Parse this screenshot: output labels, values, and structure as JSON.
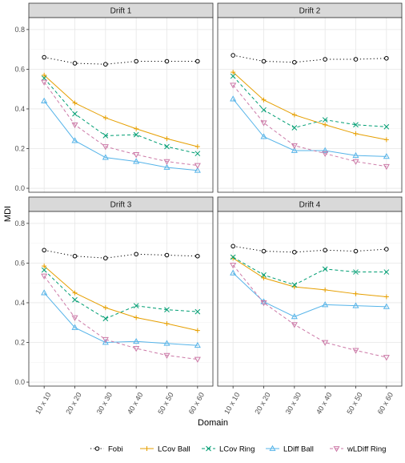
{
  "chart_data": {
    "type": "line",
    "xlabel": "Domain",
    "ylabel": "MDI",
    "categories": [
      "10 x 10",
      "20 x 20",
      "30 x 30",
      "40 x 40",
      "50 x 50",
      "60 x 60"
    ],
    "ylim": [
      -0.02,
      0.86
    ],
    "yticks": [
      0.0,
      0.2,
      0.4,
      0.6,
      0.8
    ],
    "ytick_labels": [
      "0.0",
      "0.2",
      "0.4",
      "0.6",
      "0.8"
    ],
    "grid": true,
    "legend_position": "bottom",
    "legend": [
      {
        "name": "Fobi",
        "color": "#000000",
        "dash": "dotted",
        "marker": "circle"
      },
      {
        "name": "LCov Ball",
        "color": "#E69F00",
        "dash": "solid",
        "marker": "plus"
      },
      {
        "name": "LCov Ring",
        "color": "#009E73",
        "dash": "dashed",
        "marker": "cross"
      },
      {
        "name": "LDiff Ball",
        "color": "#56B4E9",
        "dash": "solid",
        "marker": "triangle"
      },
      {
        "name": "wLDiff Ring",
        "color": "#CC79A7",
        "dash": "dashed",
        "marker": "triangle-down"
      }
    ],
    "panels": [
      {
        "title": "Drift 1",
        "series": [
          {
            "name": "Fobi",
            "values": [
              0.66,
              0.63,
              0.625,
              0.64,
              0.64,
              0.64
            ]
          },
          {
            "name": "LCov Ball",
            "values": [
              0.57,
              0.43,
              0.355,
              0.3,
              0.25,
              0.21
            ]
          },
          {
            "name": "LCov Ring",
            "values": [
              0.555,
              0.375,
              0.265,
              0.27,
              0.21,
              0.175
            ]
          },
          {
            "name": "LDiff Ball",
            "values": [
              0.44,
              0.24,
              0.155,
              0.135,
              0.105,
              0.09
            ]
          },
          {
            "name": "wLDiff Ring",
            "values": [
              0.535,
              0.32,
              0.21,
              0.17,
              0.135,
              0.115
            ]
          }
        ]
      },
      {
        "title": "Drift 2",
        "series": [
          {
            "name": "Fobi",
            "values": [
              0.67,
              0.64,
              0.635,
              0.65,
              0.65,
              0.655
            ]
          },
          {
            "name": "LCov Ball",
            "values": [
              0.585,
              0.445,
              0.37,
              0.32,
              0.275,
              0.245
            ]
          },
          {
            "name": "LCov Ring",
            "values": [
              0.565,
              0.395,
              0.305,
              0.345,
              0.32,
              0.31
            ]
          },
          {
            "name": "LDiff Ball",
            "values": [
              0.45,
              0.26,
              0.19,
              0.19,
              0.165,
              0.16
            ]
          },
          {
            "name": "wLDiff Ring",
            "values": [
              0.52,
              0.33,
              0.215,
              0.175,
              0.135,
              0.11
            ]
          }
        ]
      },
      {
        "title": "Drift 3",
        "series": [
          {
            "name": "Fobi",
            "values": [
              0.665,
              0.635,
              0.625,
              0.645,
              0.64,
              0.635
            ]
          },
          {
            "name": "LCov Ball",
            "values": [
              0.585,
              0.45,
              0.375,
              0.325,
              0.295,
              0.26
            ]
          },
          {
            "name": "LCov Ring",
            "values": [
              0.565,
              0.415,
              0.32,
              0.385,
              0.365,
              0.355
            ]
          },
          {
            "name": "LDiff Ball",
            "values": [
              0.45,
              0.275,
              0.2,
              0.205,
              0.195,
              0.185
            ]
          },
          {
            "name": "wLDiff Ring",
            "values": [
              0.535,
              0.325,
              0.215,
              0.17,
              0.135,
              0.115
            ]
          }
        ]
      },
      {
        "title": "Drift 4",
        "series": [
          {
            "name": "Fobi",
            "values": [
              0.685,
              0.66,
              0.655,
              0.665,
              0.66,
              0.67
            ]
          },
          {
            "name": "LCov Ball",
            "values": [
              0.625,
              0.525,
              0.48,
              0.465,
              0.445,
              0.43
            ]
          },
          {
            "name": "LCov Ring",
            "values": [
              0.63,
              0.54,
              0.49,
              0.57,
              0.555,
              0.555
            ]
          },
          {
            "name": "LDiff Ball",
            "values": [
              0.55,
              0.405,
              0.33,
              0.39,
              0.385,
              0.38
            ]
          },
          {
            "name": "wLDiff Ring",
            "values": [
              0.59,
              0.4,
              0.29,
              0.2,
              0.16,
              0.125
            ]
          }
        ]
      }
    ]
  }
}
